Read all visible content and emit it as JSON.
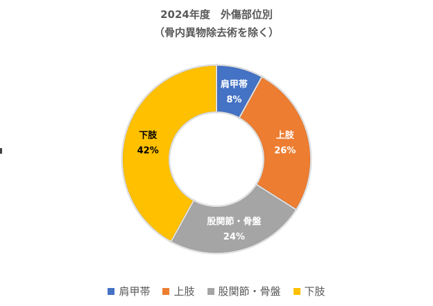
{
  "chart_data": {
    "type": "pie",
    "donut": true,
    "title": "2024年度　外傷部位別",
    "subtitle": "（骨内異物除去術を除く）",
    "categories": [
      "肩甲帯",
      "上肢",
      "股関節・骨盤",
      "下肢"
    ],
    "values": [
      8,
      26,
      24,
      42
    ],
    "value_labels": [
      "8%",
      "26%",
      "24%",
      "42%"
    ],
    "colors": [
      "#4472C4",
      "#ED7D31",
      "#A5A5A5",
      "#FFC000"
    ],
    "label_colors": [
      "#ffffff",
      "#ffffff",
      "#ffffff",
      "#000000"
    ],
    "legend_labels": [
      "肩甲帯",
      "上肢",
      "股関節・骨盤",
      "下肢"
    ],
    "legend_position": "bottom"
  }
}
